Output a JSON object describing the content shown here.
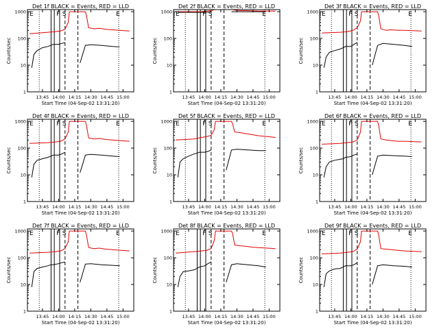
{
  "chart_data": [
    {
      "type": "line",
      "title": "Det 1f BLACK = Events, RED = LLD",
      "xlabel": "Start Time (04-Sep-02 13:31:20)",
      "ylabel": "Counts/sec",
      "yscale": "log",
      "ylim": [
        1,
        1200
      ],
      "xticks": [
        "13:45",
        "14:00",
        "14:15",
        "14:30",
        "14:45",
        "15:00"
      ],
      "yticks": [
        "1",
        "10",
        "100",
        "1000"
      ],
      "markers": [
        "E",
        "F",
        "S",
        "E"
      ],
      "series": [
        {
          "name": "LLD",
          "color": "#e00000",
          "x": [
            "13:33",
            "13:50",
            "13:57",
            "14:02",
            "14:06",
            "14:09",
            "14:10",
            "14:12",
            "14:13",
            "14:25",
            "14:26",
            "14:28",
            "14:33",
            "14:38",
            "14:44",
            "14:50",
            "15:06"
          ],
          "values": [
            150,
            170,
            180,
            190,
            220,
            400,
            1000,
            1000,
            1000,
            1000,
            700,
            250,
            230,
            240,
            220,
            210,
            190
          ]
        },
        {
          "name": "Events",
          "color": "#000000",
          "x": [
            "13:35",
            "13:37",
            "13:40",
            "13:45",
            "13:50",
            "13:53",
            "13:55",
            "14:00",
            "14:03",
            "14:06",
            null,
            "14:20",
            "14:25",
            "14:30",
            "14:40",
            "14:50",
            "14:57"
          ],
          "values": [
            8,
            25,
            35,
            45,
            50,
            55,
            60,
            60,
            65,
            70,
            null,
            12,
            55,
            58,
            55,
            50,
            48
          ]
        }
      ]
    },
    {
      "type": "line",
      "title": "Det 2f BLACK = Events, RED = LLD",
      "xlabel": "Start Time (04-Sep-02 13:31:20)",
      "ylabel": "Counts/sec",
      "yscale": "log",
      "ylim": [
        1,
        1200
      ],
      "xticks": [
        "13:45",
        "14:00",
        "14:15",
        "14:30",
        "14:45",
        "15:00"
      ],
      "yticks": [
        "1",
        "10",
        "100",
        "1000"
      ],
      "markers": [
        "E",
        "F",
        "S",
        "E"
      ],
      "series": [
        {
          "name": "LLD",
          "color": "#e00000",
          "x": [
            "13:33",
            "13:50",
            "13:57",
            "14:02",
            "14:06",
            "14:09",
            "14:10",
            "14:12",
            "14:13",
            "14:25",
            "14:26",
            "14:28",
            "14:33",
            "14:38",
            "14:44",
            "14:50",
            "15:06"
          ],
          "values": [
            1000,
            1000,
            1000,
            1050,
            1100,
            1200,
            1200,
            1200,
            1200,
            1200,
            1200,
            1150,
            1100,
            1100,
            1080,
            1060,
            1050
          ]
        },
        {
          "name": "Events",
          "color": "#000000",
          "x": [
            "13:35",
            "13:40",
            "13:45",
            "13:50",
            "13:55",
            "14:00",
            "14:03",
            "14:06",
            null,
            "14:25",
            "14:30",
            "14:40",
            "14:50",
            "14:57"
          ],
          "values": [
            950,
            950,
            950,
            950,
            950,
            950,
            960,
            980,
            null,
            1000,
            1000,
            1000,
            1000,
            1000
          ]
        }
      ]
    },
    {
      "type": "line",
      "title": "Det 3f BLACK = Events, RED = LLD",
      "xlabel": "Start Time (04-Sep-02 13:31:20)",
      "ylabel": "Counts/sec",
      "yscale": "log",
      "ylim": [
        1,
        1200
      ],
      "xticks": [
        "13:45",
        "14:00",
        "14:15",
        "14:30",
        "14:45",
        "15:00"
      ],
      "yticks": [
        "1",
        "10",
        "100",
        "1000"
      ],
      "markers": [
        "E",
        "F",
        "S",
        "E"
      ],
      "series": [
        {
          "name": "LLD",
          "color": "#e00000",
          "x": [
            "13:33",
            "13:50",
            "13:57",
            "14:02",
            "14:06",
            "14:09",
            "14:10",
            "14:12",
            "14:13",
            "14:25",
            "14:26",
            "14:28",
            "14:33",
            "14:38",
            "14:44",
            "14:50",
            "15:06"
          ],
          "values": [
            160,
            170,
            180,
            200,
            250,
            450,
            1000,
            1000,
            1000,
            1000,
            700,
            230,
            200,
            210,
            200,
            200,
            190
          ]
        },
        {
          "name": "Events",
          "color": "#000000",
          "x": [
            "13:35",
            "13:37",
            "13:40",
            "13:45",
            "13:50",
            "13:53",
            "13:55",
            "14:00",
            "14:03",
            "14:06",
            null,
            "14:20",
            "14:25",
            "14:30",
            "14:40",
            "14:50",
            "14:57"
          ],
          "values": [
            8,
            20,
            30,
            35,
            40,
            45,
            50,
            50,
            60,
            70,
            null,
            10,
            55,
            65,
            60,
            55,
            50
          ]
        }
      ]
    },
    {
      "type": "line",
      "title": "Det 4f BLACK = Events, RED = LLD",
      "xlabel": "Start Time (04-Sep-02 13:31:20)",
      "ylabel": "Counts/sec",
      "yscale": "log",
      "ylim": [
        1,
        1200
      ],
      "xticks": [
        "13:45",
        "14:00",
        "14:15",
        "14:30",
        "14:45",
        "15:00"
      ],
      "yticks": [
        "1",
        "10",
        "100",
        "1000"
      ],
      "markers": [
        "E",
        "F",
        "S",
        "E"
      ],
      "series": [
        {
          "name": "LLD",
          "color": "#e00000",
          "x": [
            "13:33",
            "13:50",
            "13:57",
            "14:02",
            "14:06",
            "14:09",
            "14:10",
            "14:12",
            "14:13",
            "14:25",
            "14:26",
            "14:28",
            "14:33",
            "14:38",
            "14:44",
            "14:50",
            "15:06"
          ],
          "values": [
            150,
            160,
            170,
            180,
            220,
            400,
            1000,
            1000,
            1000,
            1000,
            700,
            240,
            220,
            230,
            210,
            200,
            180
          ]
        },
        {
          "name": "Events",
          "color": "#000000",
          "x": [
            "13:35",
            "13:37",
            "13:40",
            "13:45",
            "13:50",
            "13:53",
            "13:55",
            "14:00",
            "14:03",
            "14:06",
            null,
            "14:20",
            "14:25",
            "14:30",
            "14:40",
            "14:50",
            "14:57"
          ],
          "values": [
            8,
            25,
            35,
            40,
            45,
            50,
            55,
            55,
            60,
            70,
            null,
            12,
            55,
            58,
            55,
            50,
            48
          ]
        }
      ]
    },
    {
      "type": "line",
      "title": "Det 5f BLACK = Events, RED = LLD",
      "xlabel": "Start Time (04-Sep-02 13:31:20)",
      "ylabel": "Counts/sec",
      "yscale": "log",
      "ylim": [
        1,
        1200
      ],
      "xticks": [
        "13:45",
        "14:00",
        "14:15",
        "14:30",
        "14:45",
        "15:00"
      ],
      "yticks": [
        "1",
        "10",
        "100",
        "1000"
      ],
      "markers": [
        "E",
        "F",
        "S",
        "E"
      ],
      "series": [
        {
          "name": "LLD",
          "color": "#e00000",
          "x": [
            "13:33",
            "13:50",
            "13:57",
            "14:02",
            "14:06",
            "14:09",
            "14:10",
            "14:12",
            "14:13",
            "14:25",
            "14:26",
            "14:28",
            "14:33",
            "14:38",
            "14:44",
            "14:50",
            "15:06"
          ],
          "values": [
            200,
            220,
            250,
            270,
            300,
            500,
            1000,
            1000,
            1000,
            1000,
            800,
            400,
            380,
            350,
            320,
            290,
            250
          ]
        },
        {
          "name": "Events",
          "color": "#000000",
          "x": [
            "13:35",
            "13:37",
            "13:40",
            "13:45",
            "13:50",
            "13:53",
            "13:55",
            "14:00",
            "14:03",
            "14:06",
            null,
            "14:20",
            "14:25",
            "14:30",
            "14:40",
            "14:50",
            "14:57"
          ],
          "values": [
            8,
            30,
            40,
            50,
            60,
            65,
            70,
            70,
            75,
            85,
            null,
            15,
            85,
            90,
            85,
            80,
            80
          ]
        }
      ]
    },
    {
      "type": "line",
      "title": "Det 6f BLACK = Events, RED = LLD",
      "xlabel": "Start Time (04-Sep-02 13:31:20)",
      "ylabel": "Counts/sec",
      "yscale": "log",
      "ylim": [
        1,
        1200
      ],
      "xticks": [
        "13:45",
        "14:00",
        "14:15",
        "14:30",
        "14:45",
        "15:00"
      ],
      "yticks": [
        "1",
        "10",
        "100",
        "1000"
      ],
      "markers": [
        "E",
        "F",
        "S",
        "E"
      ],
      "series": [
        {
          "name": "LLD",
          "color": "#e00000",
          "x": [
            "13:33",
            "13:50",
            "13:57",
            "14:02",
            "14:06",
            "14:09",
            "14:10",
            "14:12",
            "14:13",
            "14:25",
            "14:26",
            "14:28",
            "14:33",
            "14:38",
            "14:44",
            "14:50",
            "15:06"
          ],
          "values": [
            140,
            150,
            160,
            170,
            200,
            400,
            1000,
            1000,
            1000,
            1000,
            700,
            220,
            200,
            190,
            180,
            180,
            170
          ]
        },
        {
          "name": "Events",
          "color": "#000000",
          "x": [
            "13:35",
            "13:37",
            "13:40",
            "13:45",
            "13:50",
            "13:53",
            "13:55",
            "14:00",
            "14:03",
            "14:06",
            null,
            "14:20",
            "14:25",
            "14:30",
            "14:40",
            "14:50",
            "14:57"
          ],
          "values": [
            8,
            20,
            30,
            35,
            38,
            40,
            45,
            48,
            55,
            60,
            null,
            10,
            50,
            55,
            52,
            50,
            48
          ]
        }
      ]
    },
    {
      "type": "line",
      "title": "Det 7f BLACK = Events, RED = LLD",
      "xlabel": "Start Time (04-Sep-02 13:31:20)",
      "ylabel": "Counts/sec",
      "yscale": "log",
      "ylim": [
        1,
        1200
      ],
      "xticks": [
        "13:45",
        "14:00",
        "14:15",
        "14:30",
        "14:45",
        "15:00"
      ],
      "yticks": [
        "1",
        "10",
        "100",
        "1000"
      ],
      "markers": [
        "E",
        "F",
        "S",
        "E"
      ],
      "series": [
        {
          "name": "LLD",
          "color": "#e00000",
          "x": [
            "13:33",
            "13:50",
            "13:57",
            "14:02",
            "14:06",
            "14:09",
            "14:10",
            "14:12",
            "14:13",
            "14:25",
            "14:26",
            "14:28",
            "14:33",
            "14:38",
            "14:44",
            "14:50",
            "15:06"
          ],
          "values": [
            150,
            160,
            170,
            180,
            220,
            400,
            1000,
            1000,
            1000,
            1000,
            700,
            240,
            220,
            230,
            210,
            200,
            180
          ]
        },
        {
          "name": "Events",
          "color": "#000000",
          "x": [
            "13:35",
            "13:37",
            "13:40",
            "13:45",
            "13:50",
            "13:53",
            "13:55",
            "14:00",
            "14:03",
            "14:06",
            null,
            "14:20",
            "14:25",
            "14:30",
            "14:40",
            "14:50",
            "14:57"
          ],
          "values": [
            8,
            30,
            40,
            45,
            50,
            55,
            55,
            60,
            65,
            70,
            null,
            12,
            58,
            60,
            55,
            52,
            50
          ]
        }
      ]
    },
    {
      "type": "line",
      "title": "Det 8f BLACK = Events, RED = LLD",
      "xlabel": "Start Time (04-Sep-02 13:31:20)",
      "ylabel": "Counts/sec",
      "yscale": "log",
      "ylim": [
        1,
        1200
      ],
      "xticks": [
        "13:45",
        "14:00",
        "14:15",
        "14:30",
        "14:45",
        "15:00"
      ],
      "yticks": [
        "1",
        "10",
        "100",
        "1000"
      ],
      "markers": [
        "E",
        "F",
        "S",
        "E"
      ],
      "series": [
        {
          "name": "LLD",
          "color": "#e00000",
          "x": [
            "13:33",
            "13:50",
            "13:57",
            "14:02",
            "14:06",
            "14:09",
            "14:10",
            "14:12",
            "14:13",
            "14:25",
            "14:26",
            "14:28",
            "14:33",
            "14:38",
            "14:44",
            "14:50",
            "15:06"
          ],
          "values": [
            150,
            170,
            180,
            190,
            220,
            450,
            1000,
            1000,
            1000,
            1000,
            800,
            300,
            280,
            270,
            250,
            240,
            220
          ]
        },
        {
          "name": "Events",
          "color": "#000000",
          "x": [
            "13:35",
            "13:37",
            "13:40",
            "13:45",
            "13:50",
            "13:53",
            "13:55",
            "14:00",
            "14:03",
            "14:06",
            null,
            "14:20",
            "14:25",
            "14:30",
            "14:40",
            "14:50",
            "14:57"
          ],
          "values": [
            8,
            20,
            30,
            32,
            35,
            40,
            45,
            50,
            60,
            70,
            null,
            12,
            55,
            60,
            55,
            50,
            45
          ]
        }
      ]
    },
    {
      "type": "line",
      "title": "Det 9f BLACK = Events, RED = LLD",
      "xlabel": "Start Time (04-Sep-02 13:31:20)",
      "ylabel": "Counts/sec",
      "yscale": "log",
      "ylim": [
        1,
        1200
      ],
      "xticks": [
        "13:45",
        "14:00",
        "14:15",
        "14:30",
        "14:45",
        "15:00"
      ],
      "yticks": [
        "1",
        "10",
        "100",
        "1000"
      ],
      "markers": [
        "E",
        "F",
        "S",
        "E"
      ],
      "series": [
        {
          "name": "LLD",
          "color": "#e00000",
          "x": [
            "13:33",
            "13:50",
            "13:57",
            "14:02",
            "14:06",
            "14:09",
            "14:10",
            "14:12",
            "14:13",
            "14:25",
            "14:26",
            "14:28",
            "14:33",
            "14:38",
            "14:44",
            "14:50",
            "15:06"
          ],
          "values": [
            140,
            150,
            160,
            170,
            210,
            400,
            1000,
            1000,
            1000,
            1000,
            700,
            220,
            210,
            200,
            190,
            180,
            170
          ]
        },
        {
          "name": "Events",
          "color": "#000000",
          "x": [
            "13:35",
            "13:37",
            "13:40",
            "13:45",
            "13:50",
            "13:53",
            "13:55",
            "14:00",
            "14:03",
            "14:06",
            null,
            "14:20",
            "14:25",
            "14:30",
            "14:40",
            "14:50",
            "14:57"
          ],
          "values": [
            8,
            25,
            32,
            38,
            40,
            45,
            50,
            50,
            55,
            65,
            null,
            10,
            50,
            55,
            50,
            48,
            45
          ]
        }
      ]
    }
  ],
  "figure": {
    "vlines_solid": [
      "13:53",
      "13:56",
      "14:01"
    ],
    "vlines_dashed": [
      "14:06",
      "14:18"
    ],
    "vlines_dotted": [
      "13:42",
      "14:56"
    ]
  }
}
